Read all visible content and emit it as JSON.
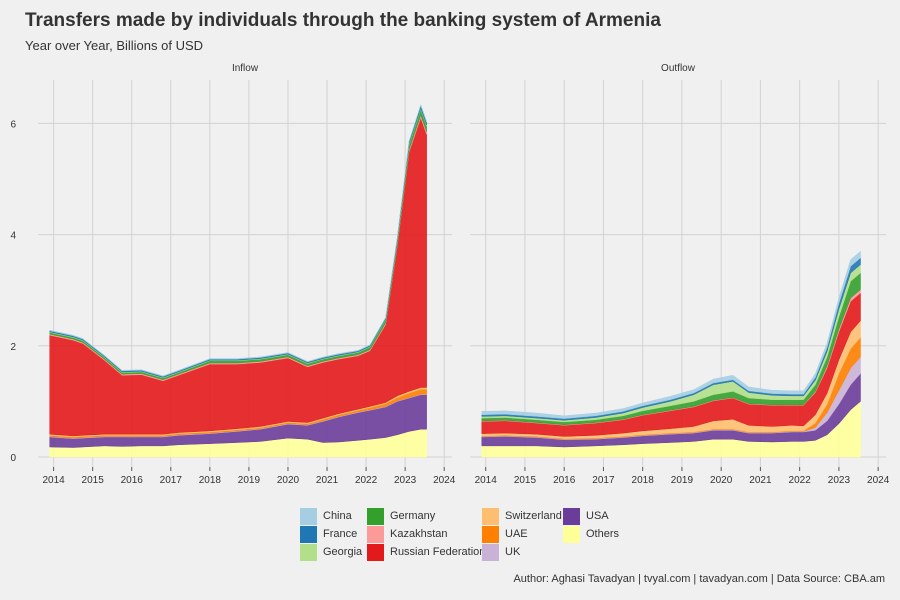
{
  "header": {
    "title": "Transfers made by individuals through the banking system of Armenia",
    "subtitle": "Year over Year, Billions of USD"
  },
  "caption": "Author: Aghasi Tavadyan   |   tvyal.com   |   tavadyan.com   |   Data Source: CBA.am",
  "colors": {
    "China": "#a6cee3",
    "France": "#1f78b4",
    "Georgia": "#b2df8a",
    "Germany": "#33a02c",
    "Kazakhstan": "#fb9a99",
    "Russian Federation": "#e31a1c",
    "Switzerland": "#fdbf6f",
    "UAE": "#ff7f00",
    "UK": "#cab2d6",
    "USA": "#6a3d9a",
    "Others": "#ffff99"
  },
  "legend": {
    "columns": [
      [
        "China",
        "France",
        "Georgia"
      ],
      [
        "Germany",
        "Kazakhstan",
        "Russian Federation"
      ],
      [
        "Switzerland",
        "UAE",
        "UK"
      ],
      [
        "USA",
        "Others"
      ]
    ]
  },
  "chart_data": [
    {
      "type": "area",
      "stacked": true,
      "facet": "Inflow",
      "xlim": [
        2013.6,
        2024.2
      ],
      "ylim": [
        0,
        6.6
      ],
      "x_ticks": [
        2014,
        2015,
        2016,
        2017,
        2018,
        2019,
        2020,
        2021,
        2022,
        2023,
        2024
      ],
      "y_ticks": [
        0,
        2,
        4,
        6
      ],
      "x": [
        2013.9,
        2014.5,
        2014.75,
        2015.3,
        2015.75,
        2016.25,
        2016.8,
        2017.2,
        2018,
        2018.7,
        2019.3,
        2020,
        2020.5,
        2020.9,
        2021.3,
        2021.8,
        2022.1,
        2022.5,
        2022.8,
        2023.1,
        2023.4,
        2023.55
      ],
      "series": [
        {
          "name": "Others",
          "values": [
            0.18,
            0.17,
            0.18,
            0.2,
            0.19,
            0.2,
            0.2,
            0.22,
            0.24,
            0.26,
            0.28,
            0.34,
            0.32,
            0.26,
            0.27,
            0.3,
            0.32,
            0.35,
            0.4,
            0.46,
            0.5,
            0.5
          ]
        },
        {
          "name": "USA",
          "values": [
            0.18,
            0.16,
            0.16,
            0.16,
            0.17,
            0.16,
            0.16,
            0.17,
            0.18,
            0.2,
            0.22,
            0.25,
            0.25,
            0.38,
            0.45,
            0.5,
            0.52,
            0.55,
            0.6,
            0.6,
            0.62,
            0.62
          ]
        },
        {
          "name": "UK",
          "values": [
            0.01,
            0.01,
            0.01,
            0.01,
            0.01,
            0.01,
            0.01,
            0.01,
            0.01,
            0.01,
            0.01,
            0.01,
            0.01,
            0.01,
            0.01,
            0.01,
            0.01,
            0.01,
            0.01,
            0.01,
            0.01,
            0.01
          ]
        },
        {
          "name": "UAE",
          "values": [
            0.02,
            0.02,
            0.02,
            0.02,
            0.02,
            0.02,
            0.02,
            0.02,
            0.02,
            0.02,
            0.02,
            0.02,
            0.02,
            0.03,
            0.03,
            0.03,
            0.04,
            0.05,
            0.06,
            0.08,
            0.09,
            0.09
          ]
        },
        {
          "name": "Switzerland",
          "values": [
            0.02,
            0.02,
            0.02,
            0.02,
            0.02,
            0.02,
            0.02,
            0.02,
            0.02,
            0.02,
            0.02,
            0.02,
            0.02,
            0.02,
            0.02,
            0.02,
            0.02,
            0.02,
            0.03,
            0.03,
            0.03,
            0.03
          ]
        },
        {
          "name": "Russian Federation",
          "values": [
            1.78,
            1.72,
            1.65,
            1.33,
            1.06,
            1.07,
            0.96,
            1.03,
            1.2,
            1.16,
            1.15,
            1.14,
            1.0,
            1.0,
            0.98,
            0.96,
            1.0,
            1.4,
            2.7,
            4.3,
            4.85,
            4.55
          ]
        },
        {
          "name": "Kazakhstan",
          "values": [
            0.02,
            0.02,
            0.02,
            0.02,
            0.02,
            0.02,
            0.02,
            0.02,
            0.02,
            0.02,
            0.02,
            0.02,
            0.02,
            0.02,
            0.02,
            0.02,
            0.02,
            0.03,
            0.03,
            0.04,
            0.05,
            0.05
          ]
        },
        {
          "name": "Germany",
          "values": [
            0.03,
            0.03,
            0.03,
            0.03,
            0.03,
            0.03,
            0.03,
            0.03,
            0.04,
            0.04,
            0.04,
            0.04,
            0.04,
            0.04,
            0.04,
            0.04,
            0.05,
            0.06,
            0.07,
            0.09,
            0.1,
            0.1
          ]
        },
        {
          "name": "Georgia",
          "values": [
            0.01,
            0.01,
            0.01,
            0.01,
            0.01,
            0.01,
            0.01,
            0.01,
            0.01,
            0.01,
            0.01,
            0.01,
            0.01,
            0.01,
            0.01,
            0.01,
            0.01,
            0.01,
            0.02,
            0.02,
            0.02,
            0.02
          ]
        },
        {
          "name": "France",
          "values": [
            0.02,
            0.02,
            0.02,
            0.02,
            0.02,
            0.02,
            0.02,
            0.02,
            0.02,
            0.02,
            0.02,
            0.02,
            0.02,
            0.02,
            0.02,
            0.02,
            0.02,
            0.02,
            0.03,
            0.04,
            0.05,
            0.05
          ]
        },
        {
          "name": "China",
          "values": [
            0.01,
            0.01,
            0.01,
            0.01,
            0.01,
            0.01,
            0.01,
            0.01,
            0.01,
            0.01,
            0.01,
            0.01,
            0.01,
            0.01,
            0.01,
            0.01,
            0.01,
            0.01,
            0.01,
            0.01,
            0.02,
            0.02
          ]
        }
      ]
    },
    {
      "type": "area",
      "stacked": true,
      "facet": "Outflow",
      "xlim": [
        2013.6,
        2024.2
      ],
      "ylim": [
        0,
        6.6
      ],
      "x_ticks": [
        2014,
        2015,
        2016,
        2017,
        2018,
        2019,
        2020,
        2021,
        2022,
        2023,
        2024
      ],
      "y_ticks": [
        0,
        2,
        4,
        6
      ],
      "x": [
        2013.9,
        2014.5,
        2015.3,
        2016,
        2016.8,
        2017.5,
        2018,
        2018.7,
        2019.3,
        2019.8,
        2020.3,
        2020.7,
        2021.3,
        2021.8,
        2022.1,
        2022.4,
        2022.7,
        2023,
        2023.3,
        2023.55
      ],
      "series": [
        {
          "name": "Others",
          "values": [
            0.2,
            0.2,
            0.2,
            0.18,
            0.2,
            0.22,
            0.24,
            0.26,
            0.28,
            0.32,
            0.32,
            0.28,
            0.27,
            0.28,
            0.28,
            0.3,
            0.4,
            0.6,
            0.85,
            1.0
          ]
        },
        {
          "name": "USA",
          "values": [
            0.16,
            0.17,
            0.15,
            0.13,
            0.12,
            0.13,
            0.14,
            0.15,
            0.15,
            0.16,
            0.16,
            0.15,
            0.16,
            0.17,
            0.17,
            0.18,
            0.25,
            0.35,
            0.45,
            0.5
          ]
        },
        {
          "name": "UK",
          "values": [
            0.01,
            0.01,
            0.01,
            0.01,
            0.01,
            0.01,
            0.01,
            0.01,
            0.01,
            0.01,
            0.01,
            0.01,
            0.01,
            0.01,
            0.01,
            0.05,
            0.15,
            0.25,
            0.3,
            0.3
          ]
        },
        {
          "name": "UAE",
          "values": [
            0.01,
            0.01,
            0.01,
            0.01,
            0.01,
            0.01,
            0.01,
            0.01,
            0.01,
            0.01,
            0.01,
            0.01,
            0.01,
            0.01,
            0.01,
            0.08,
            0.15,
            0.3,
            0.35,
            0.35
          ]
        },
        {
          "name": "Switzerland",
          "values": [
            0.04,
            0.04,
            0.04,
            0.04,
            0.05,
            0.06,
            0.07,
            0.08,
            0.1,
            0.15,
            0.18,
            0.12,
            0.1,
            0.1,
            0.09,
            0.15,
            0.2,
            0.25,
            0.3,
            0.3
          ]
        },
        {
          "name": "Russian Federation",
          "values": [
            0.22,
            0.22,
            0.2,
            0.2,
            0.22,
            0.24,
            0.28,
            0.32,
            0.35,
            0.36,
            0.38,
            0.38,
            0.38,
            0.36,
            0.37,
            0.4,
            0.45,
            0.5,
            0.55,
            0.5
          ]
        },
        {
          "name": "Kazakhstan",
          "values": [
            0.01,
            0.01,
            0.01,
            0.01,
            0.01,
            0.01,
            0.01,
            0.01,
            0.01,
            0.01,
            0.01,
            0.01,
            0.01,
            0.01,
            0.01,
            0.02,
            0.04,
            0.05,
            0.06,
            0.06
          ]
        },
        {
          "name": "Germany",
          "values": [
            0.05,
            0.05,
            0.05,
            0.05,
            0.05,
            0.06,
            0.07,
            0.08,
            0.09,
            0.1,
            0.11,
            0.1,
            0.09,
            0.09,
            0.09,
            0.12,
            0.16,
            0.22,
            0.3,
            0.3
          ]
        },
        {
          "name": "Georgia",
          "values": [
            0.03,
            0.03,
            0.03,
            0.03,
            0.04,
            0.05,
            0.06,
            0.08,
            0.12,
            0.18,
            0.18,
            0.1,
            0.08,
            0.07,
            0.07,
            0.08,
            0.1,
            0.14,
            0.15,
            0.15
          ]
        },
        {
          "name": "France",
          "values": [
            0.03,
            0.03,
            0.03,
            0.03,
            0.03,
            0.03,
            0.03,
            0.03,
            0.03,
            0.03,
            0.03,
            0.03,
            0.03,
            0.03,
            0.03,
            0.05,
            0.07,
            0.1,
            0.12,
            0.12
          ]
        },
        {
          "name": "China",
          "values": [
            0.06,
            0.06,
            0.06,
            0.05,
            0.05,
            0.05,
            0.05,
            0.06,
            0.06,
            0.07,
            0.08,
            0.07,
            0.06,
            0.06,
            0.06,
            0.07,
            0.08,
            0.1,
            0.12,
            0.12
          ]
        }
      ]
    }
  ]
}
